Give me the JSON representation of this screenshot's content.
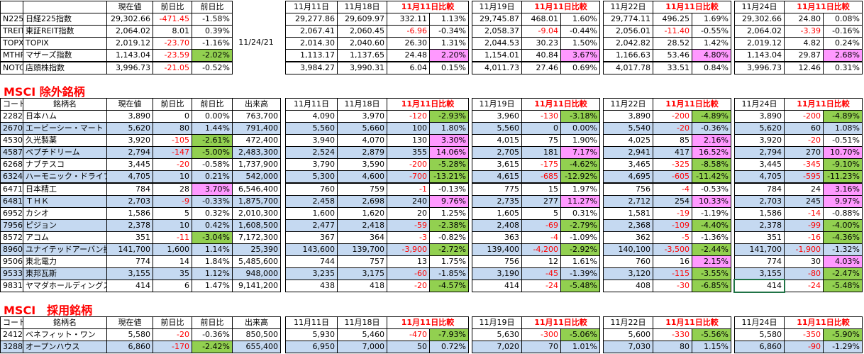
{
  "settings": {
    "band_color": "#c5d9f1",
    "up_color": "#ff99ff",
    "down_color": "#92d050",
    "negative_color": "#ff0000"
  },
  "index_table": {
    "header": [
      "現在値",
      "前日比",
      "前日比",
      "11月11日",
      "11月18日",
      "11月11日比較",
      "11月19日",
      "11月11日比較",
      "11月22日",
      "11月11日比較",
      "11月24日",
      "11月11日比較"
    ],
    "as_of": "11/24/21",
    "rows": [
      [
        "N225",
        "日経225指数",
        "29,302.66",
        "-471.45",
        "-1.58%",
        "29,277.86",
        "29,609.97",
        "332.11",
        "1.13%",
        "29,745.87",
        "468.01",
        "1.60%",
        "29,774.11",
        "496.25",
        "1.69%",
        "29,302.66",
        "24.80",
        "0.08%"
      ],
      [
        "TREIT",
        "東証REIT指数",
        "2,064.02",
        "8.01",
        "0.39%",
        "2,067.41",
        "2,060.45",
        "-6.96",
        "-0.34%",
        "2,058.37",
        "-9.04",
        "-0.44%",
        "2,056.01",
        "-11.40",
        "-0.55%",
        "2,064.02",
        "-3.39",
        "-0.16%"
      ],
      [
        "TOPX",
        "TOPIX",
        "2,019.12",
        "-23.70",
        "-1.16%",
        "2,014.30",
        "2,040.60",
        "26.30",
        "1.31%",
        "2,044.53",
        "30.23",
        "1.50%",
        "2,042.82",
        "28.52",
        "1.42%",
        "2,019.12",
        "4.82",
        "0.24%"
      ],
      [
        "MTHR",
        "マザーズ指数",
        "1,143.04",
        "-23.59",
        "-2.02%",
        "1,113.17",
        "1,137.65",
        "24.48",
        "2.20%",
        "1,154.01",
        "40.84",
        "3.67%",
        "1,166.63",
        "53.46",
        "4.80%",
        "1,143.04",
        "29.87",
        "2.68%"
      ],
      [
        "NOTC",
        "店頭株指数",
        "3,996.73",
        "-21.05",
        "-0.52%",
        "3,984.27",
        "3,990.31",
        "6.04",
        "0.15%",
        "4,011.73",
        "27.46",
        "0.69%",
        "4,017.78",
        "33.51",
        "0.84%",
        "3,996.73",
        "12.46",
        "0.31%"
      ]
    ]
  },
  "excluded_table": {
    "title": "MSCI 除外銘柄",
    "header": [
      "コード",
      "銘柄名",
      "現在値",
      "前日比",
      "前日比",
      "出来高",
      "11月11日",
      "11月18日",
      "11月11日比較",
      "11月19日",
      "11月11日比較",
      "11月22日",
      "11月11日比較",
      "11月24日",
      "11月11日比較"
    ],
    "rows": [
      [
        "2282",
        "日本ハム",
        "3,890",
        "0",
        "0.00%",
        "763,700",
        "4,090",
        "3,970",
        "-120",
        "-2.93%",
        "3,960",
        "-130",
        "-3.18%",
        "3,890",
        "-200",
        "-4.89%",
        "3,890",
        "-200",
        "-4.89%"
      ],
      [
        "2670",
        "エービーシー・マート",
        "5,620",
        "80",
        "1.44%",
        "791,400",
        "5,560",
        "5,660",
        "100",
        "1.80%",
        "5,560",
        "0",
        "0.00%",
        "5,540",
        "-20",
        "-0.36%",
        "5,620",
        "60",
        "1.08%"
      ],
      [
        "4530",
        "久光製薬",
        "3,920",
        "-105",
        "-2.61%",
        "472,400",
        "3,940",
        "4,070",
        "130",
        "3.30%",
        "4,015",
        "75",
        "1.90%",
        "4,025",
        "85",
        "2.16%",
        "3,920",
        "-20",
        "-0.51%"
      ],
      [
        "4587",
        "ペプチドリーム",
        "2,794",
        "-147",
        "-5.00%",
        "2,483,300",
        "2,524",
        "2,879",
        "355",
        "14.06%",
        "2,705",
        "181",
        "7.17%",
        "2,941",
        "417",
        "16.52%",
        "2,794",
        "270",
        "10.70%"
      ],
      [
        "6268",
        "ナブテスコ",
        "3,445",
        "-20",
        "-0.58%",
        "1,737,900",
        "3,790",
        "3,590",
        "-200",
        "-5.28%",
        "3,615",
        "-175",
        "-4.62%",
        "3,465",
        "-325",
        "-8.58%",
        "3,445",
        "-345",
        "-9.10%"
      ],
      [
        "6324",
        "ハーモニック・ドライブ・シ",
        "4,705",
        "10",
        "0.21%",
        "542,000",
        "5,300",
        "4,600",
        "-700",
        "-13.21%",
        "4,615",
        "-685",
        "-12.92%",
        "4,695",
        "-605",
        "-11.42%",
        "4,705",
        "-595",
        "-11.23%"
      ],
      [
        "6471",
        "日本精工",
        "784",
        "28",
        "3.70%",
        "6,546,400",
        "760",
        "759",
        "-1",
        "-0.13%",
        "775",
        "15",
        "1.97%",
        "756",
        "-4",
        "-0.53%",
        "784",
        "24",
        "3.16%"
      ],
      [
        "6481",
        "ＴＨＫ",
        "2,703",
        "-9",
        "-0.33%",
        "1,875,700",
        "2,458",
        "2,698",
        "240",
        "9.76%",
        "2,735",
        "277",
        "11.27%",
        "2,712",
        "254",
        "10.33%",
        "2,703",
        "245",
        "9.97%"
      ],
      [
        "6952",
        "カシオ",
        "1,586",
        "5",
        "0.32%",
        "2,010,300",
        "1,600",
        "1,620",
        "20",
        "1.25%",
        "1,605",
        "5",
        "0.31%",
        "1,581",
        "-19",
        "-1.19%",
        "1,586",
        "-14",
        "-0.88%"
      ],
      [
        "7956",
        "ピジョン",
        "2,378",
        "10",
        "0.42%",
        "1,608,500",
        "2,477",
        "2,418",
        "-59",
        "-2.38%",
        "2,408",
        "-69",
        "-2.79%",
        "2,368",
        "-109",
        "-4.40%",
        "2,378",
        "-99",
        "-4.00%"
      ],
      [
        "8572",
        "アコム",
        "351",
        "-11",
        "-3.04%",
        "7,172,300",
        "367",
        "364",
        "-3",
        "-0.82%",
        "363",
        "-4",
        "-1.09%",
        "362",
        "-5",
        "-1.36%",
        "351",
        "-16",
        "-4.36%"
      ],
      [
        "8960",
        "ユナイテッドアーバン投資",
        "141,700",
        "1,600",
        "1.14%",
        "25,390",
        "143,600",
        "139,700",
        "-3,900",
        "-2.72%",
        "139,400",
        "-4,200",
        "-2.92%",
        "140,100",
        "-3,500",
        "-2.44%",
        "141,700",
        "-1,900",
        "-1.32%"
      ],
      [
        "9506",
        "東北電力",
        "774",
        "14",
        "1.84%",
        "5,485,600",
        "744",
        "757",
        "13",
        "1.75%",
        "756",
        "12",
        "1.61%",
        "760",
        "16",
        "2.15%",
        "774",
        "30",
        "4.03%"
      ],
      [
        "9533",
        "東邦瓦斯",
        "3,155",
        "35",
        "1.12%",
        "948,000",
        "3,235",
        "3,175",
        "-60",
        "-1.85%",
        "3,190",
        "-45",
        "-1.39%",
        "3,120",
        "-115",
        "-3.55%",
        "3,155",
        "-80",
        "-2.47%"
      ],
      [
        "9831",
        "ヤマダホールディングス",
        "414",
        "6",
        "1.47%",
        "9,141,200",
        "438",
        "418",
        "-20",
        "-4.57%",
        "414",
        "-24",
        "-5.48%",
        "408",
        "-30",
        "-6.85%",
        "414",
        "-24",
        "-5.48%"
      ]
    ]
  },
  "adopted_table": {
    "title": "MSCI　採用銘柄",
    "header": [
      "コード",
      "銘柄名",
      "現在値",
      "前日比",
      "前日比",
      "出来高",
      "11月11日",
      "11月18日",
      "11月11日比較",
      "11月19日",
      "11月11日比較",
      "11月22日",
      "11月11日比較",
      "11月24日",
      "11月11日比較"
    ],
    "rows": [
      [
        "2412",
        "ベネフィット・ワン",
        "5,580",
        "-20",
        "-0.36%",
        "850,500",
        "5,930",
        "5,460",
        "-470",
        "-7.93%",
        "5,630",
        "-300",
        "-5.06%",
        "5,600",
        "-330",
        "-5.56%",
        "5,580",
        "-350",
        "-5.90%"
      ],
      [
        "3288",
        "オープンハウス",
        "6,860",
        "-170",
        "-2.42%",
        "655,400",
        "6,950",
        "7,000",
        "50",
        "0.72%",
        "7,020",
        "70",
        "1.01%",
        "7,030",
        "80",
        "1.15%",
        "6,860",
        "-90",
        "-1.29%"
      ]
    ]
  }
}
